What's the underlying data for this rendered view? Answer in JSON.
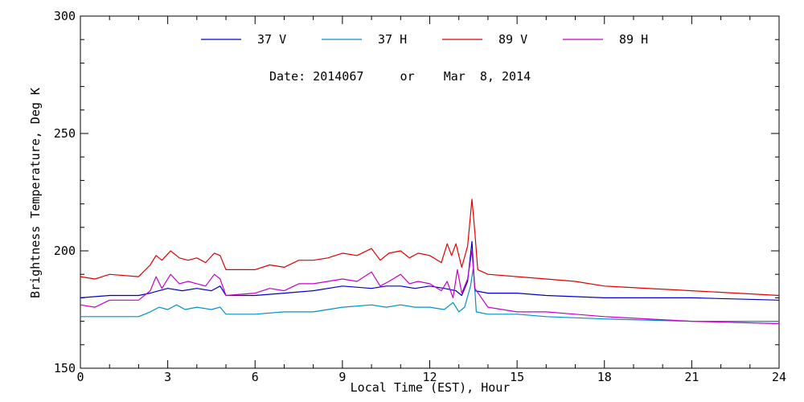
{
  "chart_data": {
    "type": "line",
    "xlabel": "Local Time (EST), Hour",
    "ylabel": "Brightness Temperature, Deg K",
    "xlim": [
      0,
      24
    ],
    "ylim": [
      150,
      300
    ],
    "x_ticks": [
      0,
      3,
      6,
      9,
      12,
      15,
      18,
      21,
      24
    ],
    "x_tick_labels": [
      "0",
      "3",
      "6",
      "9",
      "12",
      "15",
      "18",
      "21",
      "24"
    ],
    "y_ticks": [
      150,
      200,
      250,
      300
    ],
    "y_tick_labels": [
      "150",
      "200",
      "250",
      "300"
    ],
    "annotation": "Date: 2014067     or    Mar  8, 2014",
    "legend_placement": "top",
    "grid": false,
    "series": [
      {
        "name": "37 V",
        "color": "#0000c8",
        "points": [
          [
            0,
            180
          ],
          [
            1.0,
            181
          ],
          [
            2.0,
            181
          ],
          [
            2.4,
            182
          ],
          [
            2.7,
            183
          ],
          [
            3.0,
            184
          ],
          [
            3.5,
            183
          ],
          [
            4.0,
            184
          ],
          [
            4.5,
            183
          ],
          [
            4.8,
            185
          ],
          [
            5.0,
            181
          ],
          [
            6.0,
            181
          ],
          [
            7.0,
            182
          ],
          [
            8.0,
            183
          ],
          [
            9.0,
            185
          ],
          [
            10.0,
            184
          ],
          [
            10.5,
            185
          ],
          [
            11.0,
            185
          ],
          [
            11.5,
            184
          ],
          [
            12.0,
            185
          ],
          [
            12.5,
            184
          ],
          [
            12.9,
            183
          ],
          [
            13.1,
            181
          ],
          [
            13.3,
            187
          ],
          [
            13.45,
            204
          ],
          [
            13.55,
            183
          ],
          [
            14.0,
            182
          ],
          [
            15.0,
            182
          ],
          [
            16.0,
            181
          ],
          [
            18.0,
            180
          ],
          [
            21.0,
            180
          ],
          [
            24.0,
            179
          ]
        ]
      },
      {
        "name": "37 H",
        "color": "#0090c8",
        "points": [
          [
            0,
            172
          ],
          [
            1.0,
            172
          ],
          [
            2.0,
            172
          ],
          [
            2.4,
            174
          ],
          [
            2.7,
            176
          ],
          [
            3.0,
            175
          ],
          [
            3.3,
            177
          ],
          [
            3.6,
            175
          ],
          [
            4.0,
            176
          ],
          [
            4.5,
            175
          ],
          [
            4.8,
            176
          ],
          [
            5.0,
            173
          ],
          [
            6.0,
            173
          ],
          [
            7.0,
            174
          ],
          [
            8.0,
            174
          ],
          [
            9.0,
            176
          ],
          [
            10.0,
            177
          ],
          [
            10.5,
            176
          ],
          [
            11.0,
            177
          ],
          [
            11.5,
            176
          ],
          [
            12.0,
            176
          ],
          [
            12.5,
            175
          ],
          [
            12.8,
            178
          ],
          [
            13.0,
            174
          ],
          [
            13.2,
            176
          ],
          [
            13.4,
            185
          ],
          [
            13.5,
            193
          ],
          [
            13.6,
            174
          ],
          [
            14.0,
            173
          ],
          [
            15.0,
            173
          ],
          [
            16.0,
            172
          ],
          [
            18.0,
            171
          ],
          [
            21.0,
            170
          ],
          [
            24.0,
            170
          ]
        ]
      },
      {
        "name": "89 V",
        "color": "#e00000",
        "points": [
          [
            0,
            189
          ],
          [
            0.5,
            188
          ],
          [
            1.0,
            190
          ],
          [
            2.0,
            189
          ],
          [
            2.4,
            194
          ],
          [
            2.6,
            198
          ],
          [
            2.8,
            196
          ],
          [
            3.1,
            200
          ],
          [
            3.4,
            197
          ],
          [
            3.7,
            196
          ],
          [
            4.0,
            197
          ],
          [
            4.3,
            195
          ],
          [
            4.6,
            199
          ],
          [
            4.8,
            198
          ],
          [
            5.0,
            192
          ],
          [
            6.0,
            192
          ],
          [
            6.5,
            194
          ],
          [
            7.0,
            193
          ],
          [
            7.5,
            196
          ],
          [
            8.0,
            196
          ],
          [
            8.5,
            197
          ],
          [
            9.0,
            199
          ],
          [
            9.5,
            198
          ],
          [
            10.0,
            201
          ],
          [
            10.3,
            196
          ],
          [
            10.6,
            199
          ],
          [
            11.0,
            200
          ],
          [
            11.3,
            197
          ],
          [
            11.6,
            199
          ],
          [
            12.0,
            198
          ],
          [
            12.4,
            195
          ],
          [
            12.6,
            203
          ],
          [
            12.75,
            198
          ],
          [
            12.9,
            203
          ],
          [
            13.1,
            193
          ],
          [
            13.3,
            202
          ],
          [
            13.45,
            222
          ],
          [
            13.55,
            208
          ],
          [
            13.65,
            192
          ],
          [
            14.0,
            190
          ],
          [
            15.0,
            189
          ],
          [
            16.0,
            188
          ],
          [
            17.0,
            187
          ],
          [
            18.0,
            185
          ],
          [
            21.0,
            183
          ],
          [
            24.0,
            181
          ]
        ]
      },
      {
        "name": "89 H",
        "color": "#c800c8",
        "points": [
          [
            0,
            177
          ],
          [
            0.5,
            176
          ],
          [
            1.0,
            179
          ],
          [
            2.0,
            179
          ],
          [
            2.4,
            183
          ],
          [
            2.6,
            189
          ],
          [
            2.8,
            184
          ],
          [
            3.1,
            190
          ],
          [
            3.4,
            186
          ],
          [
            3.7,
            187
          ],
          [
            4.0,
            186
          ],
          [
            4.3,
            185
          ],
          [
            4.6,
            190
          ],
          [
            4.8,
            188
          ],
          [
            5.0,
            181
          ],
          [
            6.0,
            182
          ],
          [
            6.5,
            184
          ],
          [
            7.0,
            183
          ],
          [
            7.5,
            186
          ],
          [
            8.0,
            186
          ],
          [
            8.5,
            187
          ],
          [
            9.0,
            188
          ],
          [
            9.5,
            187
          ],
          [
            10.0,
            191
          ],
          [
            10.3,
            185
          ],
          [
            10.6,
            187
          ],
          [
            11.0,
            190
          ],
          [
            11.3,
            186
          ],
          [
            11.6,
            187
          ],
          [
            12.0,
            186
          ],
          [
            12.4,
            183
          ],
          [
            12.6,
            187
          ],
          [
            12.8,
            180
          ],
          [
            12.95,
            192
          ],
          [
            13.1,
            182
          ],
          [
            13.3,
            188
          ],
          [
            13.45,
            200
          ],
          [
            13.55,
            184
          ],
          [
            14.0,
            176
          ],
          [
            15.0,
            174
          ],
          [
            16.0,
            174
          ],
          [
            17.0,
            173
          ],
          [
            18.0,
            172
          ],
          [
            21.0,
            170
          ],
          [
            24.0,
            169
          ]
        ]
      }
    ]
  }
}
